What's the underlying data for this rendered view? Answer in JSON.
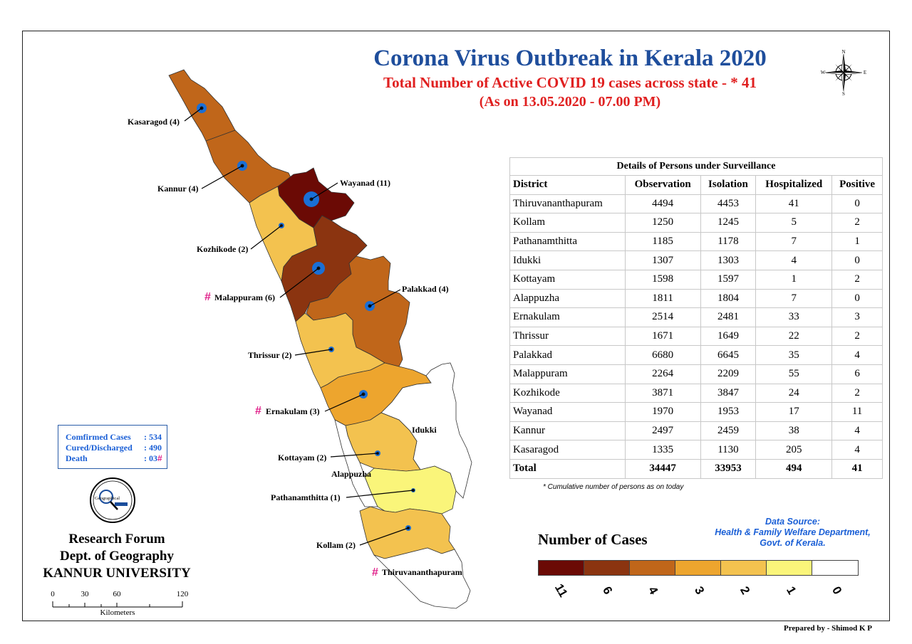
{
  "title": "Corona Virus Outbreak in Kerala 2020",
  "subtitle": "Total Number of Active COVID 19 cases across state - * 41",
  "date_line": "(As on 13.05.2020 - 07.00 PM)",
  "compass": {
    "n": "N",
    "s": "S",
    "e": "E",
    "w": "W",
    "icon": "compass-rose-icon"
  },
  "map_labels": {
    "kasaragod": "Kasaragod (4)",
    "kannur": "Kannur (4)",
    "wayanad": "Wayanad (11)",
    "kozhikode": "Kozhikode (2)",
    "malappuram": "Malappuram (6)",
    "palakkad": "Palakkad (4)",
    "thrissur": "Thrissur (2)",
    "ernakulam": "Ernakulam (3)",
    "idukki": "Idukki",
    "kottayam": "Kottayam (2)",
    "alappuzha": "Alappuzha",
    "pathanamthitta": "Pathanamthitta (1)",
    "kollam": "Kollam (2)",
    "thiruvananthapuram": "Thiruvananthapuram",
    "hash": "#"
  },
  "stats": {
    "confirmed_label": "Comfirmed Cases",
    "confirmed_value": ": 534",
    "cured_label": "Cured/Discharged",
    "cured_value": ": 490",
    "death_label": "Death",
    "death_value": ": 03",
    "hash": "#"
  },
  "institution": {
    "line1": "Research Forum",
    "line2": "Dept. of Geography",
    "line3": "KANNUR UNIVERSITY",
    "logo_text": "Geographical"
  },
  "scale": {
    "t0": "0",
    "t1": "30",
    "t2": "60",
    "t3": "120",
    "unit": "Kilometers"
  },
  "table": {
    "caption": "Details of Persons under Surveillance",
    "headers": [
      "District",
      "Observation",
      "Isolation",
      "Hospitalized",
      "Positive"
    ],
    "rows": [
      [
        "Thiruvananthapuram",
        "4494",
        "4453",
        "41",
        "0"
      ],
      [
        "Kollam",
        "1250",
        "1245",
        "5",
        "2"
      ],
      [
        "Pathanamthitta",
        "1185",
        "1178",
        "7",
        "1"
      ],
      [
        "Idukki",
        "1307",
        "1303",
        "4",
        "0"
      ],
      [
        "Kottayam",
        "1598",
        "1597",
        "1",
        "2"
      ],
      [
        "Alappuzha",
        "1811",
        "1804",
        "7",
        "0"
      ],
      [
        "Ernakulam",
        "2514",
        "2481",
        "33",
        "3"
      ],
      [
        "Thrissur",
        "1671",
        "1649",
        "22",
        "2"
      ],
      [
        "Palakkad",
        "6680",
        "6645",
        "35",
        "4"
      ],
      [
        "Malappuram",
        "2264",
        "2209",
        "55",
        "6"
      ],
      [
        "Kozhikode",
        "3871",
        "3847",
        "24",
        "2"
      ],
      [
        "Wayanad",
        "1970",
        "1953",
        "17",
        "11"
      ],
      [
        "Kannur",
        "2497",
        "2459",
        "38",
        "4"
      ],
      [
        "Kasaragod",
        "1335",
        "1130",
        "205",
        "4"
      ]
    ],
    "total": [
      "Total",
      "34447",
      "33953",
      "494",
      "41"
    ]
  },
  "note": "* Cumulative number of persons as on today",
  "source": {
    "line1": "Data Source:",
    "line2": "Health & Family Welfare Department,",
    "line3": "Govt. of Kerala."
  },
  "legend": {
    "title": "Number of Cases",
    "classes": [
      {
        "label": "11",
        "color": "#6b0a05"
      },
      {
        "label": "6",
        "color": "#8b3410"
      },
      {
        "label": "4",
        "color": "#c0661a"
      },
      {
        "label": "3",
        "color": "#eda52e"
      },
      {
        "label": "2",
        "color": "#f3c24f"
      },
      {
        "label": "1",
        "color": "#faf57a"
      },
      {
        "label": "0",
        "color": "#ffffff"
      }
    ]
  },
  "prepared_by": "Prepared by - Shimod K P"
}
